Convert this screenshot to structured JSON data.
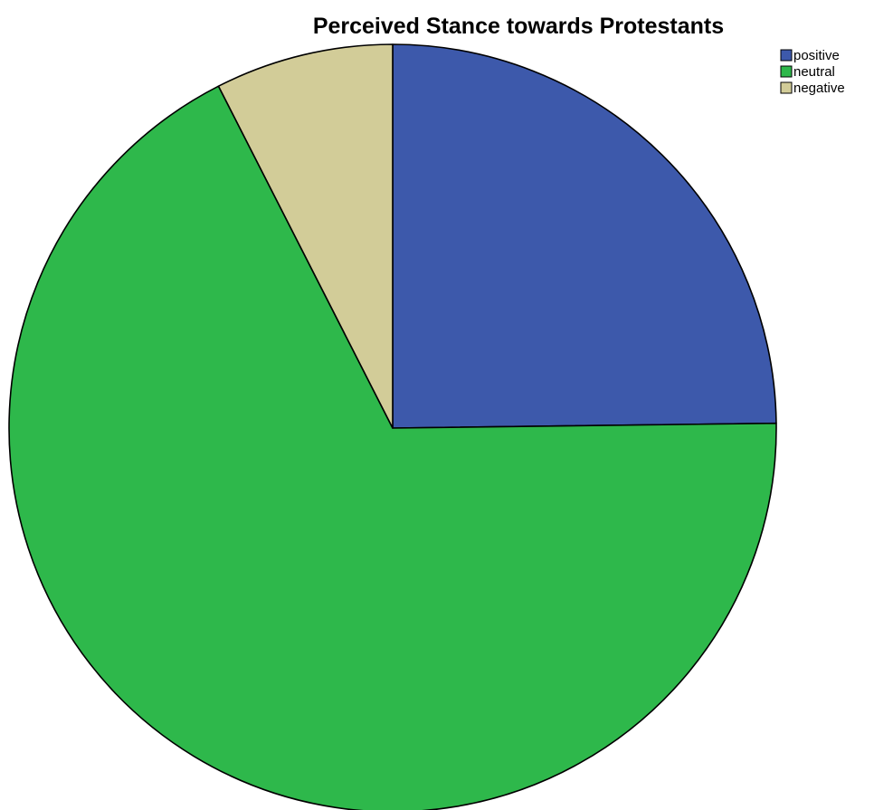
{
  "chart_data": {
    "type": "pie",
    "title": "Perceived Stance towards Protestants",
    "slices": [
      {
        "label": "positive",
        "value": 24.8,
        "color": "#3d59ab"
      },
      {
        "label": "neutral",
        "value": 67.7,
        "color": "#2eb84b"
      },
      {
        "label": "negative",
        "value": 7.5,
        "color": "#d2cc98"
      }
    ],
    "start_angle_deg": 0,
    "direction": "clockwise",
    "legend_position": "top-right",
    "edge_color": "#000000"
  }
}
